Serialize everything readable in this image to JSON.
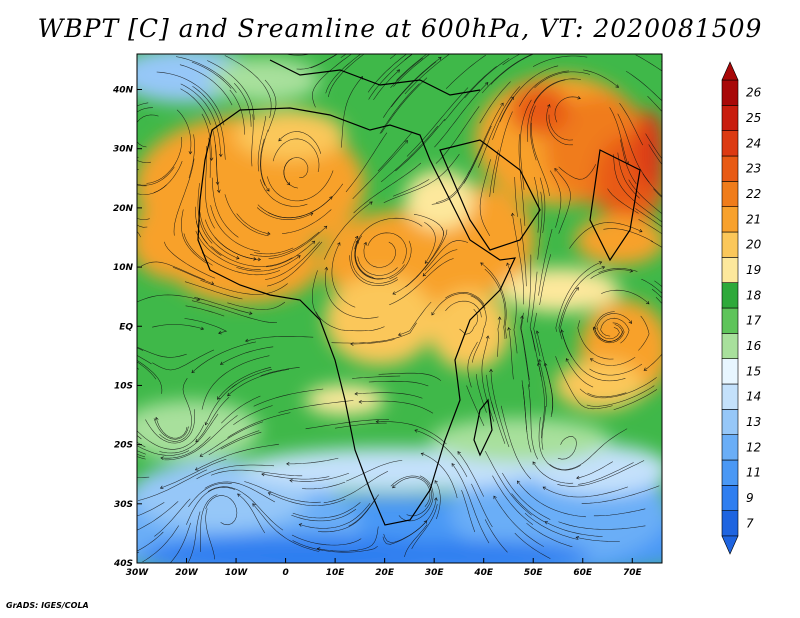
{
  "title": "WBPT [C] and Sreamline at 600hPa, VT: 2020081509",
  "credit": "GrADS: IGES/COLA",
  "map": {
    "lon_range": [
      -30,
      76
    ],
    "lat_range": [
      -40,
      46
    ],
    "lat_labels": [
      "40S",
      "30S",
      "20S",
      "10S",
      "EQ",
      "10N",
      "20N",
      "30N",
      "40N"
    ],
    "lat_values": [
      -40,
      -30,
      -20,
      -10,
      0,
      10,
      20,
      30,
      40
    ],
    "lon_labels": [
      "30W",
      "20W",
      "10W",
      "0",
      "10E",
      "20E",
      "30E",
      "40E",
      "50E",
      "60E",
      "70E"
    ],
    "lon_values": [
      -30,
      -20,
      -10,
      0,
      10,
      20,
      30,
      40,
      50,
      60,
      70
    ]
  },
  "colorbar": {
    "labels": [
      "7",
      "9",
      "11",
      "12",
      "13",
      "14",
      "15",
      "16",
      "17",
      "18",
      "19",
      "20",
      "21",
      "22",
      "23",
      "24",
      "25",
      "26"
    ],
    "colors": [
      "#1e64e0",
      "#2f7ef0",
      "#4a98f5",
      "#6aaef7",
      "#96c7f8",
      "#c4e1fb",
      "#e8f6ff",
      "#a8e09c",
      "#5ec45a",
      "#2ea93a",
      "#fde89c",
      "#fbc75a",
      "#f8a12c",
      "#f07c1a",
      "#e85a14",
      "#dc3a12",
      "#c81d0e",
      "#a80808"
    ]
  }
}
